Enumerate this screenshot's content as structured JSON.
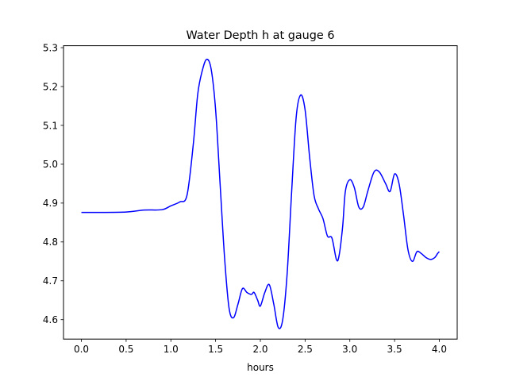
{
  "chart_data": {
    "type": "line",
    "title": "Water Depth h at gauge 6",
    "xlabel": "hours",
    "ylabel": "",
    "xlim": [
      -0.2,
      4.2
    ],
    "ylim": [
      4.55,
      5.305
    ],
    "x_ticks": [
      0.0,
      0.5,
      1.0,
      1.5,
      2.0,
      2.5,
      3.0,
      3.5,
      4.0
    ],
    "x_tick_labels": [
      "0.0",
      "0.5",
      "1.0",
      "1.5",
      "2.0",
      "2.5",
      "3.0",
      "3.5",
      "4.0"
    ],
    "y_ticks": [
      4.6,
      4.7,
      4.8,
      4.9,
      5.0,
      5.1,
      5.2,
      5.3
    ],
    "y_tick_labels": [
      "4.6",
      "4.7",
      "4.8",
      "4.9",
      "5.0",
      "5.1",
      "5.2",
      "5.3"
    ],
    "grid": false,
    "series": [
      {
        "color": "#0000ff",
        "x": [
          0.0,
          0.2,
          0.5,
          0.7,
          0.9,
          1.0,
          1.1,
          1.18,
          1.25,
          1.3,
          1.35,
          1.4,
          1.45,
          1.5,
          1.55,
          1.6,
          1.65,
          1.7,
          1.75,
          1.8,
          1.85,
          1.9,
          1.93,
          1.97,
          2.0,
          2.05,
          2.1,
          2.15,
          2.2,
          2.25,
          2.3,
          2.35,
          2.4,
          2.45,
          2.5,
          2.55,
          2.6,
          2.65,
          2.7,
          2.75,
          2.8,
          2.85,
          2.88,
          2.92,
          2.95,
          3.0,
          3.05,
          3.1,
          3.15,
          3.2,
          3.27,
          3.33,
          3.4,
          3.45,
          3.5,
          3.55,
          3.6,
          3.65,
          3.7,
          3.75,
          3.8,
          3.85,
          3.9,
          3.95,
          3.98,
          4.0
        ],
        "y": [
          4.876,
          4.876,
          4.877,
          4.882,
          4.883,
          4.893,
          4.903,
          4.92,
          5.05,
          5.18,
          5.24,
          5.27,
          5.245,
          5.14,
          4.95,
          4.76,
          4.63,
          4.605,
          4.64,
          4.68,
          4.67,
          4.665,
          4.67,
          4.65,
          4.635,
          4.67,
          4.69,
          4.64,
          4.58,
          4.6,
          4.72,
          4.93,
          5.12,
          5.178,
          5.14,
          5.02,
          4.92,
          4.885,
          4.86,
          4.815,
          4.81,
          4.755,
          4.765,
          4.84,
          4.93,
          4.96,
          4.94,
          4.89,
          4.89,
          4.93,
          4.98,
          4.98,
          4.95,
          4.93,
          4.975,
          4.95,
          4.87,
          4.78,
          4.75,
          4.775,
          4.77,
          4.76,
          4.755,
          4.76,
          4.77,
          4.775
        ]
      }
    ]
  }
}
